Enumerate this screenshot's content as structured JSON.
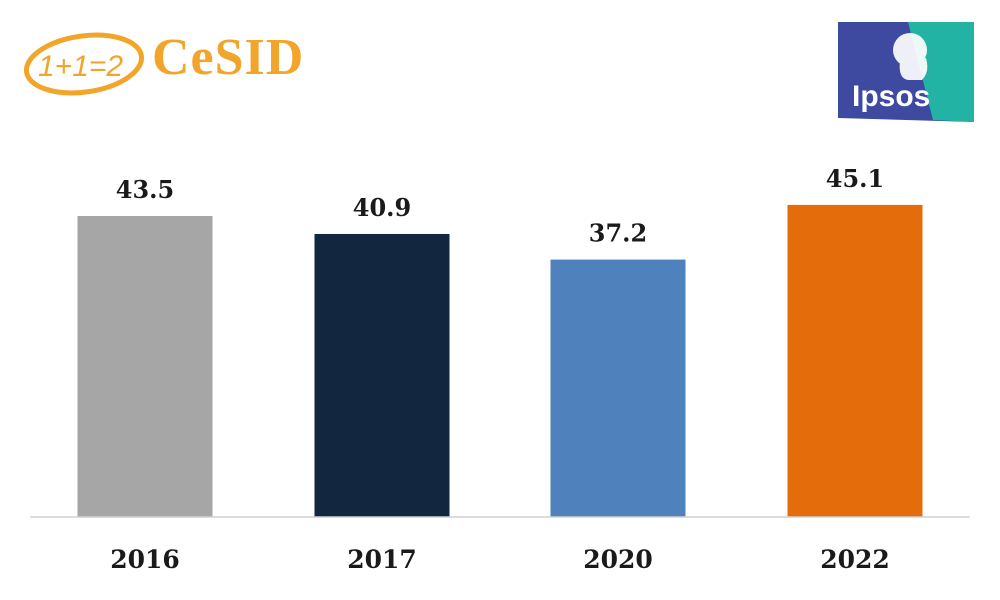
{
  "logos": {
    "cesid": {
      "badge_text": "1+1=2",
      "name": "CeSID",
      "color": "#f2a52b"
    },
    "ipsos": {
      "name": "Ipsos",
      "colors": [
        "#3d4aa0",
        "#22b3a4"
      ]
    }
  },
  "chart_data": {
    "type": "bar",
    "title": "",
    "xlabel": "",
    "ylabel": "",
    "categories": [
      "2016",
      "2017",
      "2020",
      "2022"
    ],
    "values": [
      43.5,
      40.9,
      37.2,
      45.1
    ],
    "colors": [
      "#a6a6a6",
      "#13263f",
      "#4f81bd",
      "#e46c0a"
    ],
    "ylim": [
      0,
      50
    ],
    "grid": false,
    "legend": "none"
  }
}
